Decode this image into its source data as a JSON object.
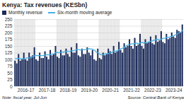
{
  "chart_data": {
    "type": "bar",
    "title": "Kenya: Tax revenues (KESbn)",
    "note": "Note: fiscal year, Jul-Jun",
    "source": "Source: Central Bank of Kenya",
    "categories": [
      null,
      null,
      null,
      null,
      null,
      null,
      "2016-17",
      null,
      null,
      null,
      null,
      null,
      null,
      null,
      null,
      null,
      null,
      null,
      "2017-18",
      null,
      null,
      null,
      null,
      null,
      null,
      null,
      null,
      null,
      null,
      null,
      "2018-19",
      null,
      null,
      null,
      null,
      null,
      null,
      null,
      null,
      null,
      null,
      null,
      "2019-20",
      null,
      null,
      null,
      null,
      null,
      null,
      null,
      null,
      null,
      null,
      null,
      "2020-21",
      null,
      null,
      null,
      null,
      null,
      null,
      null,
      null,
      null,
      null,
      null,
      "2021-22",
      null,
      null,
      null,
      null,
      null,
      null,
      null,
      null,
      null,
      null,
      null,
      "2022-23",
      null,
      null,
      null,
      null,
      null,
      null,
      null,
      null,
      null,
      null,
      null,
      "2023-24",
      null,
      null,
      null,
      null,
      null
    ],
    "series": [
      {
        "name": "Monthly revenue",
        "type": "bar",
        "color": "#1c2b5a",
        "values": [
          95,
          85,
          120,
          95,
          100,
          125,
          100,
          95,
          125,
          110,
          115,
          145,
          100,
          95,
          125,
          105,
          105,
          130,
          110,
          100,
          135,
          115,
          120,
          150,
          110,
          105,
          135,
          115,
          115,
          140,
          120,
          110,
          145,
          125,
          125,
          160,
          115,
          110,
          140,
          120,
          120,
          145,
          125,
          115,
          135,
          100,
          95,
          140,
          105,
          100,
          125,
          115,
          120,
          140,
          130,
          120,
          150,
          125,
          130,
          165,
          135,
          125,
          160,
          145,
          150,
          175,
          150,
          140,
          180,
          150,
          155,
          195,
          150,
          140,
          175,
          160,
          165,
          185,
          160,
          155,
          190,
          165,
          170,
          205,
          165,
          160,
          195,
          175,
          180,
          200,
          185,
          180,
          210,
          205,
          200,
          230
        ]
      },
      {
        "name": "Six-month moving average",
        "type": "line",
        "color": "#45b0e5",
        "values": [
          105,
          104,
          105,
          103,
          104,
          103,
          106,
          106,
          107,
          107,
          112,
          115,
          116,
          115,
          116,
          115,
          116,
          118,
          119,
          118,
          120,
          121,
          122,
          127,
          127,
          126,
          128,
          128,
          130,
          130,
          132,
          131,
          133,
          134,
          135,
          138,
          138,
          136,
          137,
          137,
          138,
          140,
          141,
          140,
          139,
          135,
          128,
          126,
          120,
          118,
          119,
          122,
          122,
          123,
          126,
          128,
          133,
          131,
          134,
          137,
          141,
          143,
          147,
          152,
          155,
          157,
          159,
          159,
          161,
          162,
          159,
          163,
          165,
          162,
          164,
          165,
          167,
          169,
          171,
          173,
          175,
          176,
          173,
          177,
          180,
          180,
          183,
          183,
          185,
          187,
          189,
          193,
          196,
          200,
          202,
          210
        ]
      }
    ],
    "ylim": [
      0,
      250
    ],
    "yticks": [
      0,
      25,
      50,
      75,
      100,
      125,
      150,
      175,
      200,
      225,
      250
    ],
    "grid": true
  }
}
